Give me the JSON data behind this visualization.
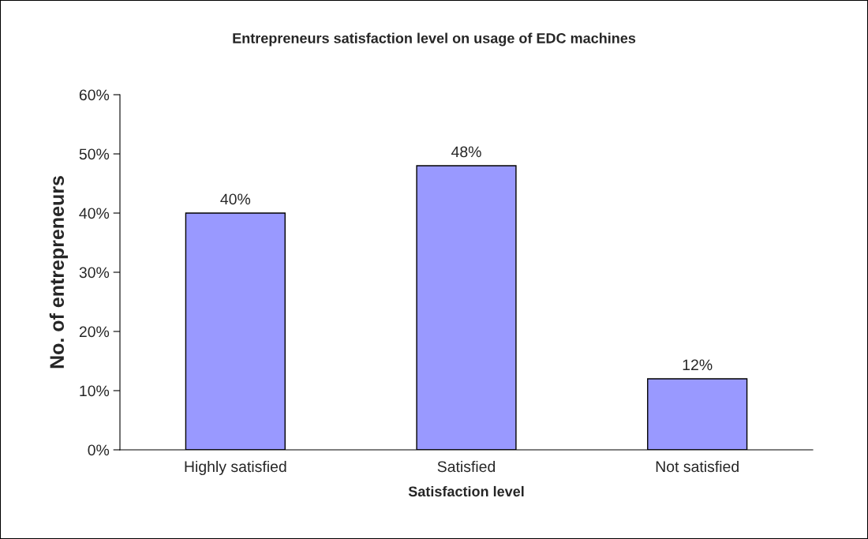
{
  "chart_data": {
    "type": "bar",
    "title": "Entrepreneurs satisfaction level on usage of EDC machines",
    "xlabel": "Satisfaction level",
    "ylabel": "No. of entrepreneurs",
    "categories": [
      "Highly satisfied",
      "Satisfied",
      "Not satisfied"
    ],
    "values": [
      40,
      48,
      12
    ],
    "value_labels": [
      "40%",
      "48%",
      "12%"
    ],
    "color": "#9999ff",
    "ylim": [
      0,
      60
    ],
    "yticks": [
      {
        "value": 0,
        "label": "0%"
      },
      {
        "value": 10,
        "label": "10%"
      },
      {
        "value": 20,
        "label": "20%"
      },
      {
        "value": 30,
        "label": "30%"
      },
      {
        "value": 40,
        "label": "40%"
      },
      {
        "value": 50,
        "label": "50%"
      },
      {
        "value": 60,
        "label": "60%"
      }
    ],
    "grid": false,
    "legend": false
  }
}
